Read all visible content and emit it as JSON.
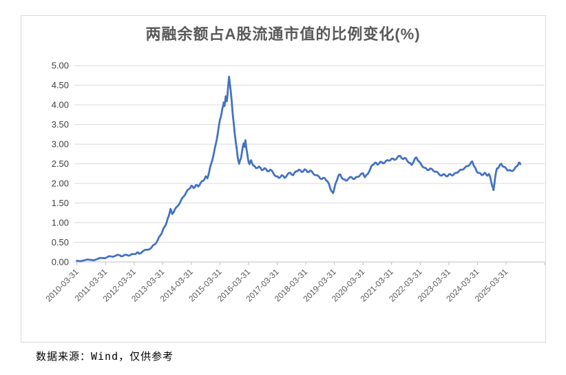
{
  "title": "两融余额占A股流通市值的比例变化(%)",
  "source_note": "数据来源：Wind，仅供参考",
  "colors": {
    "line": "#4472C4",
    "gridline": "#D9D9D9",
    "axis": "#BFBFBF",
    "chart_border": "#D9D9D9",
    "title_text": "#595959",
    "y_label_text": "#404040",
    "x_label_text": "#595959"
  },
  "chart_data": {
    "type": "line",
    "title": "两融余额占A股流通市值的比例变化(%)",
    "xlabel": "",
    "ylabel": "",
    "ylim": [
      0,
      5
    ],
    "grid": true,
    "legend": "none",
    "y_ticks": [
      0,
      0.5,
      1,
      1.5,
      2,
      2.5,
      3,
      3.5,
      4,
      4.5,
      5
    ],
    "y_tick_format": "2dp",
    "x_tick_labels": [
      "2010-03-31",
      "2011-03-31",
      "2012-03-31",
      "2013-03-31",
      "2014-03-31",
      "2015-03-31",
      "2016-03-31",
      "2017-03-31",
      "2018-03-31",
      "2019-03-31",
      "2020-03-31",
      "2021-03-31",
      "2022-03-31",
      "2023-03-31",
      "2024-03-31",
      "2025-03-31"
    ],
    "x_unit": "years_since_2010-03-31",
    "series": [
      {
        "points": [
          [
            0,
            0.03
          ],
          [
            0.25,
            0.04
          ],
          [
            0.5,
            0.05
          ],
          [
            0.7,
            0.07
          ],
          [
            0.9,
            0.1
          ],
          [
            1.05,
            0.12
          ],
          [
            1.2,
            0.14
          ],
          [
            1.35,
            0.16
          ],
          [
            1.5,
            0.17
          ],
          [
            1.6,
            0.15
          ],
          [
            1.75,
            0.18
          ],
          [
            1.85,
            0.17
          ],
          [
            2.0,
            0.2
          ],
          [
            2.1,
            0.24
          ],
          [
            2.17,
            0.21
          ],
          [
            2.3,
            0.27
          ],
          [
            2.45,
            0.31
          ],
          [
            2.6,
            0.36
          ],
          [
            2.72,
            0.45
          ],
          [
            2.82,
            0.55
          ],
          [
            2.92,
            0.68
          ],
          [
            3.0,
            0.8
          ],
          [
            3.07,
            0.9
          ],
          [
            3.14,
            1.02
          ],
          [
            3.2,
            1.15
          ],
          [
            3.27,
            1.35
          ],
          [
            3.33,
            1.22
          ],
          [
            3.42,
            1.33
          ],
          [
            3.52,
            1.42
          ],
          [
            3.62,
            1.54
          ],
          [
            3.72,
            1.66
          ],
          [
            3.82,
            1.77
          ],
          [
            3.92,
            1.86
          ],
          [
            4.0,
            1.94
          ],
          [
            4.08,
            1.88
          ],
          [
            4.16,
            1.96
          ],
          [
            4.24,
            1.92
          ],
          [
            4.32,
            2.01
          ],
          [
            4.42,
            2.07
          ],
          [
            4.5,
            2.18
          ],
          [
            4.56,
            2.13
          ],
          [
            4.63,
            2.32
          ],
          [
            4.7,
            2.52
          ],
          [
            4.78,
            2.74
          ],
          [
            4.86,
            3.02
          ],
          [
            4.93,
            3.3
          ],
          [
            5.0,
            3.62
          ],
          [
            5.06,
            3.8
          ],
          [
            5.1,
            3.95
          ],
          [
            5.13,
            4.06
          ],
          [
            5.16,
            3.97
          ],
          [
            5.2,
            4.22
          ],
          [
            5.24,
            4.09
          ],
          [
            5.28,
            4.42
          ],
          [
            5.32,
            4.72
          ],
          [
            5.36,
            4.46
          ],
          [
            5.41,
            4.1
          ],
          [
            5.46,
            3.66
          ],
          [
            5.51,
            3.32
          ],
          [
            5.56,
            3.02
          ],
          [
            5.61,
            2.72
          ],
          [
            5.67,
            2.5
          ],
          [
            5.73,
            2.63
          ],
          [
            5.79,
            2.9
          ],
          [
            5.83,
            3.02
          ],
          [
            5.86,
            2.93
          ],
          [
            5.89,
            3.1
          ],
          [
            5.93,
            2.86
          ],
          [
            5.98,
            2.62
          ],
          [
            6.03,
            2.49
          ],
          [
            6.09,
            2.59
          ],
          [
            6.16,
            2.46
          ],
          [
            6.26,
            2.39
          ],
          [
            6.36,
            2.43
          ],
          [
            6.46,
            2.34
          ],
          [
            6.56,
            2.39
          ],
          [
            6.66,
            2.31
          ],
          [
            6.76,
            2.35
          ],
          [
            6.86,
            2.27
          ],
          [
            6.96,
            2.18
          ],
          [
            7.06,
            2.14
          ],
          [
            7.16,
            2.21
          ],
          [
            7.26,
            2.14
          ],
          [
            7.36,
            2.23
          ],
          [
            7.46,
            2.27
          ],
          [
            7.56,
            2.21
          ],
          [
            7.66,
            2.31
          ],
          [
            7.76,
            2.35
          ],
          [
            7.86,
            2.29
          ],
          [
            7.96,
            2.36
          ],
          [
            8.06,
            2.29
          ],
          [
            8.16,
            2.33
          ],
          [
            8.26,
            2.25
          ],
          [
            8.36,
            2.21
          ],
          [
            8.46,
            2.17
          ],
          [
            8.56,
            2.11
          ],
          [
            8.66,
            2.14
          ],
          [
            8.76,
            2.05
          ],
          [
            8.83,
            1.94
          ],
          [
            8.9,
            1.8
          ],
          [
            8.95,
            1.75
          ],
          [
            9.0,
            1.88
          ],
          [
            9.06,
            2.03
          ],
          [
            9.13,
            2.18
          ],
          [
            9.2,
            2.23
          ],
          [
            9.3,
            2.11
          ],
          [
            9.4,
            2.07
          ],
          [
            9.5,
            2.13
          ],
          [
            9.6,
            2.16
          ],
          [
            9.7,
            2.11
          ],
          [
            9.8,
            2.17
          ],
          [
            9.9,
            2.21
          ],
          [
            10.0,
            2.26
          ],
          [
            10.07,
            2.16
          ],
          [
            10.15,
            2.23
          ],
          [
            10.25,
            2.36
          ],
          [
            10.33,
            2.47
          ],
          [
            10.42,
            2.53
          ],
          [
            10.5,
            2.48
          ],
          [
            10.6,
            2.55
          ],
          [
            10.7,
            2.51
          ],
          [
            10.8,
            2.57
          ],
          [
            10.9,
            2.58
          ],
          [
            11.0,
            2.63
          ],
          [
            11.1,
            2.6
          ],
          [
            11.2,
            2.66
          ],
          [
            11.3,
            2.7
          ],
          [
            11.4,
            2.62
          ],
          [
            11.5,
            2.64
          ],
          [
            11.6,
            2.53
          ],
          [
            11.7,
            2.47
          ],
          [
            11.8,
            2.61
          ],
          [
            11.87,
            2.66
          ],
          [
            11.95,
            2.56
          ],
          [
            12.05,
            2.46
          ],
          [
            12.15,
            2.4
          ],
          [
            12.25,
            2.34
          ],
          [
            12.35,
            2.38
          ],
          [
            12.45,
            2.33
          ],
          [
            12.55,
            2.3
          ],
          [
            12.65,
            2.24
          ],
          [
            12.75,
            2.2
          ],
          [
            12.85,
            2.23
          ],
          [
            12.95,
            2.18
          ],
          [
            13.05,
            2.24
          ],
          [
            13.15,
            2.21
          ],
          [
            13.25,
            2.27
          ],
          [
            13.35,
            2.31
          ],
          [
            13.45,
            2.35
          ],
          [
            13.55,
            2.39
          ],
          [
            13.65,
            2.44
          ],
          [
            13.75,
            2.5
          ],
          [
            13.82,
            2.56
          ],
          [
            13.9,
            2.42
          ],
          [
            13.97,
            2.31
          ],
          [
            14.05,
            2.27
          ],
          [
            14.15,
            2.21
          ],
          [
            14.25,
            2.27
          ],
          [
            14.33,
            2.2
          ],
          [
            14.4,
            2.24
          ],
          [
            14.46,
            2.12
          ],
          [
            14.52,
            1.93
          ],
          [
            14.56,
            1.83
          ],
          [
            14.62,
            2.16
          ],
          [
            14.68,
            2.38
          ],
          [
            14.76,
            2.43
          ],
          [
            14.83,
            2.5
          ],
          [
            14.92,
            2.42
          ],
          [
            15.0,
            2.38
          ],
          [
            15.08,
            2.33
          ],
          [
            15.18,
            2.32
          ],
          [
            15.28,
            2.35
          ],
          [
            15.38,
            2.44
          ],
          [
            15.45,
            2.53
          ],
          [
            15.5,
            2.49
          ]
        ]
      }
    ]
  }
}
